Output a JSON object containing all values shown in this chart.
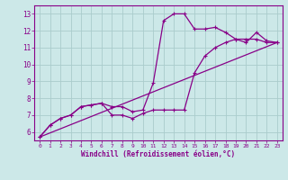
{
  "xlabel": "Windchill (Refroidissement éolien,°C)",
  "bg_color": "#cce8e8",
  "grid_color": "#aacccc",
  "line_color": "#880088",
  "xlim": [
    -0.5,
    23.5
  ],
  "ylim": [
    5.5,
    13.5
  ],
  "xticks": [
    0,
    1,
    2,
    3,
    4,
    5,
    6,
    7,
    8,
    9,
    10,
    11,
    12,
    13,
    14,
    15,
    16,
    17,
    18,
    19,
    20,
    21,
    22,
    23
  ],
  "yticks": [
    6,
    7,
    8,
    9,
    10,
    11,
    12,
    13
  ],
  "line1_x": [
    0,
    1,
    2,
    3,
    4,
    5,
    6,
    7,
    8,
    9,
    10,
    11,
    12,
    13,
    14,
    15,
    16,
    17,
    18,
    19,
    20,
    21,
    22,
    23
  ],
  "line1_y": [
    5.7,
    6.4,
    6.8,
    7.0,
    7.5,
    7.6,
    7.7,
    7.5,
    7.5,
    7.2,
    7.3,
    8.9,
    12.6,
    13.0,
    13.0,
    12.1,
    12.1,
    12.2,
    11.9,
    11.5,
    11.3,
    11.9,
    11.4,
    11.3
  ],
  "line2_x": [
    0,
    1,
    2,
    3,
    4,
    5,
    6,
    7,
    8,
    9,
    10,
    11,
    12,
    13,
    14,
    15,
    16,
    17,
    18,
    19,
    20,
    21,
    22,
    23
  ],
  "line2_y": [
    5.7,
    6.4,
    6.8,
    7.0,
    7.5,
    7.6,
    7.7,
    7.0,
    7.0,
    6.8,
    7.1,
    7.3,
    7.3,
    7.3,
    7.3,
    9.5,
    10.5,
    11.0,
    11.3,
    11.5,
    11.5,
    11.5,
    11.3,
    11.3
  ],
  "line3_x": [
    0,
    23
  ],
  "line3_y": [
    5.7,
    11.3
  ]
}
